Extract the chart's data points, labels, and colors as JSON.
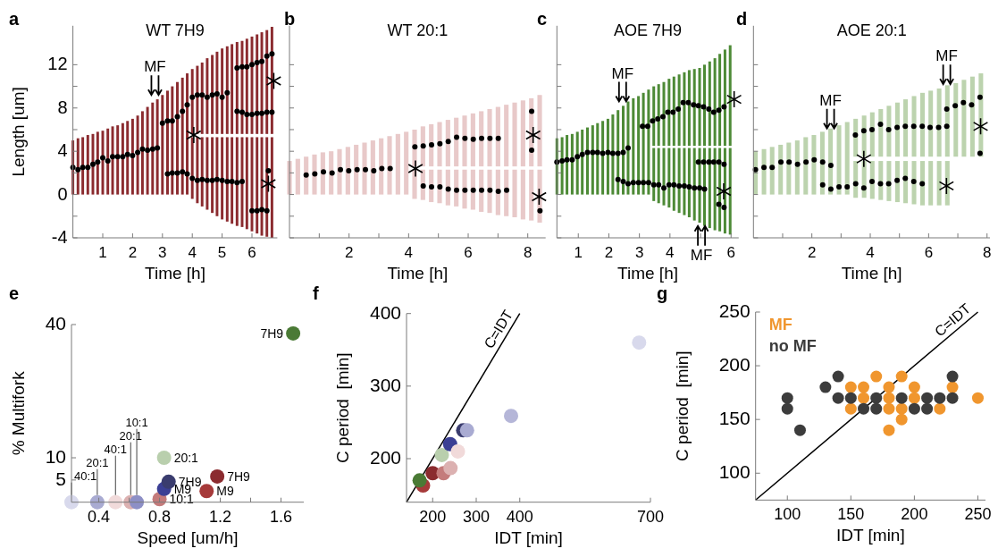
{
  "chart_data": [
    {
      "type": "bar",
      "title": "WT 7H9",
      "xlabel": "Time [h]",
      "ylabel": "Length [um]",
      "xlim": [
        0,
        6.85
      ],
      "ylim": [
        -4,
        15.6
      ],
      "xticks": [
        1,
        2,
        3,
        4,
        5,
        6
      ],
      "yticks": [
        -4,
        {
          "value": -2,
          "label": null
        },
        0,
        {
          "value": 2,
          "label": null
        },
        4,
        {
          "value": 6,
          "label": null
        },
        8,
        {
          "value": 10,
          "label": null
        },
        12
      ],
      "marker": "circle",
      "annotations": [
        "a",
        {
          "text": "MF",
          "x": 2.75,
          "y": 9.2
        }
      ],
      "series": [
        {
          "color": "#8b2b2f",
          "x": [
            0,
            0.17,
            0.33,
            0.5,
            0.67,
            0.83,
            1,
            1.17,
            1.33,
            1.5,
            1.67,
            1.83,
            2,
            2.17,
            2.33,
            2.5,
            2.67,
            2.83,
            3,
            3.17,
            3.33,
            3.5,
            3.67,
            3.83,
            4,
            4.17,
            4.33,
            4.5,
            4.67,
            4.83,
            5,
            5.17,
            5.33,
            5.5,
            5.67,
            5.83,
            6,
            6.17,
            6.33,
            6.5,
            6.67
          ],
          "base": [
            0,
            0,
            0,
            0,
            0,
            0,
            0,
            0,
            0,
            0,
            0,
            0,
            0,
            0,
            0,
            0,
            0,
            0,
            0,
            0,
            0,
            0,
            0,
            0,
            -0.4,
            -0.8,
            -1.1,
            -1.4,
            -1.7,
            -2,
            -2.3,
            -2.5,
            -2.7,
            -2.9,
            -3,
            -3.2,
            -3.4,
            -3.6,
            -3.8,
            -3.9,
            -4
          ],
          "values": [
            5,
            5.2,
            5.3,
            5.5,
            5.6,
            5.8,
            5.9,
            6.1,
            6.3,
            6.4,
            6.6,
            6.8,
            7,
            7.3,
            7.7,
            8.1,
            8.5,
            8.8,
            9.2,
            9.6,
            10,
            10.4,
            10.8,
            11.2,
            5.7,
            6.1,
            6.4,
            6.7,
            7,
            7.3,
            7.6,
            7.8,
            8,
            8.2,
            8.3,
            8.5,
            8.7,
            8.9,
            9.1,
            9.2,
            9.3
          ]
        },
        {
          "color": "#8b2b2f",
          "x": [
            4,
            4.17,
            4.33,
            4.5,
            4.67,
            4.83,
            5,
            5.17,
            5.33,
            5.5,
            5.67,
            5.83,
            6,
            6.17,
            6.33,
            6.5,
            6.67
          ],
          "base": [
            5.6,
            5.6,
            5.6,
            5.6,
            5.6,
            5.6,
            5.6,
            5.6,
            5.6,
            5.6,
            5.6,
            5.6,
            5.6,
            5.6,
            5.6,
            5.6,
            5.6
          ],
          "values": [
            6,
            6.3,
            6.6,
            7,
            7.3,
            7.6,
            7.9,
            8.1,
            8.3,
            8.5,
            8.6,
            8.8,
            9,
            9.2,
            9.4,
            9.6,
            9.9
          ]
        },
        {
          "type": "scatter",
          "color": "#000000",
          "x": [
            0,
            0.17,
            0.33,
            0.5,
            0.67,
            0.83,
            1,
            1.17,
            1.33,
            1.5,
            1.67,
            1.83,
            2,
            2.17,
            2.33,
            2.5,
            2.67,
            2.83,
            3,
            3.17,
            3.33,
            3.5,
            3.67,
            3.83,
            4,
            4.17,
            4.33,
            4.5,
            4.67,
            4.83,
            5,
            5.17,
            3.17,
            3.33,
            3.5,
            3.67,
            3.83,
            4,
            4.17,
            4.33,
            4.5,
            4.67,
            4.83,
            5,
            5.17,
            5.33,
            5.5,
            5.67,
            5.5,
            5.67,
            5.83,
            6,
            6.17,
            6.33,
            6.5,
            6.67,
            5.5,
            5.67,
            5.83,
            6,
            6.17,
            6.33,
            6.5,
            6.67,
            6,
            6.17,
            6.33,
            6.5,
            6.55
          ],
          "values": [
            2.5,
            2.3,
            2.5,
            2.5,
            2.8,
            3,
            3.4,
            3.1,
            3.5,
            3.5,
            3.5,
            3.7,
            3.6,
            3.9,
            4.2,
            4.1,
            4.2,
            4.3,
            6.6,
            6.8,
            6.8,
            7.2,
            7.7,
            8.3,
            9,
            9.2,
            9.2,
            9,
            9.2,
            9.3,
            9,
            9.4,
            1.9,
            2,
            2,
            2.1,
            1.9,
            1.5,
            1.3,
            1.4,
            1.3,
            1.3,
            1.4,
            1.3,
            1.2,
            1.2,
            1.1,
            1.2,
            11.7,
            11.8,
            11.8,
            12,
            12.2,
            12.3,
            12.8,
            13,
            7.7,
            7.6,
            7.4,
            7.4,
            7.5,
            7.5,
            7.6,
            7.6,
            -1.5,
            -1.5,
            -1.4,
            -1.5,
            2.2
          ]
        },
        {
          "type": "scatter",
          "marker": "cross",
          "color": "#000000",
          "x": [
            4.05,
            6.73,
            6.55
          ],
          "values": [
            5.5,
            10.5,
            1
          ]
        }
      ]
    },
    {
      "type": "bar",
      "title": "WT 20:1",
      "xlabel": "Time [h]",
      "xlim": [
        0,
        8.6
      ],
      "ylim": [
        -4,
        15.6
      ],
      "tick_labels": "x",
      "xticks": [
        {
          "value": 1,
          "label": null
        },
        2,
        {
          "value": 3,
          "label": null
        },
        4,
        {
          "value": 5,
          "label": null
        },
        6,
        {
          "value": 7,
          "label": null
        },
        8
      ],
      "yticks": [
        {
          "value": -4,
          "label": null
        },
        {
          "value": -2,
          "label": null
        },
        {
          "value": 0,
          "label": null
        },
        {
          "value": 2,
          "label": null
        },
        {
          "value": 4,
          "label": null
        },
        {
          "value": 6,
          "label": null
        },
        {
          "value": 8,
          "label": null
        },
        {
          "value": 10,
          "label": null
        },
        {
          "value": 12,
          "label": null
        }
      ],
      "marker": "circle",
      "annotations": [
        "b"
      ],
      "series": [
        {
          "color": "#e8c9c9",
          "x": [
            0,
            0.28,
            0.56,
            0.84,
            1.12,
            1.4,
            1.68,
            1.96,
            2.24,
            2.52,
            2.8,
            3.08,
            3.36,
            3.64,
            3.92,
            4.2,
            4.48,
            4.76,
            5.04,
            5.32,
            5.6,
            5.88,
            6.16,
            6.44,
            6.72,
            7,
            7.28,
            7.56,
            7.84,
            8.12,
            8.4
          ],
          "base": [
            0,
            0,
            0,
            0,
            0,
            0,
            0,
            0,
            0,
            0,
            0,
            0,
            0,
            0,
            0,
            -0.4,
            -0.5,
            -0.7,
            -0.8,
            -1,
            -1.1,
            -1.3,
            -1.4,
            -1.6,
            -1.7,
            -1.9,
            -2,
            -2.1,
            -2.3,
            -2.4,
            -2.6
          ],
          "values": [
            3.1,
            3.3,
            3.5,
            3.7,
            3.9,
            4,
            4.2,
            4.4,
            4.6,
            4.8,
            5,
            5.2,
            5.4,
            5.6,
            5.8,
            2.7,
            2.8,
            3,
            3.1,
            3.3,
            3.4,
            3.6,
            3.7,
            3.9,
            4,
            4.2,
            4.3,
            4.4,
            4.6,
            4.7,
            4.9
          ]
        },
        {
          "color": "#e8c9c9",
          "x": [
            4.2,
            4.48,
            4.76,
            5.04,
            5.32,
            5.6,
            5.88,
            6.16,
            6.44,
            6.72,
            7,
            7.28,
            7.56,
            7.84,
            8.12,
            8.4
          ],
          "base": [
            2.6,
            2.6,
            2.6,
            2.6,
            2.6,
            2.6,
            2.6,
            2.6,
            2.6,
            2.6,
            2.6,
            2.6,
            2.6,
            2.6,
            2.6,
            2.6
          ],
          "values": [
            3.4,
            3.7,
            3.9,
            4.1,
            4.3,
            4.5,
            4.7,
            4.9,
            5.1,
            5.3,
            5.5,
            5.7,
            5.9,
            6.1,
            6.3,
            6.6
          ]
        },
        {
          "type": "scatter",
          "color": "#000000",
          "x": [
            0.56,
            0.85,
            1.14,
            1.43,
            1.71,
            1.99,
            2.27,
            2.55,
            2.83,
            3.1,
            3.38,
            4.21,
            4.49,
            4.77,
            5.05,
            5.33,
            5.61,
            5.89,
            6.17,
            6.45,
            6.73,
            7.01,
            4.49,
            4.77,
            5.05,
            5.33,
            5.61,
            5.89,
            6.17,
            6.45,
            6.73,
            7.01,
            7.29,
            8.13,
            8.13,
            8.41
          ],
          "values": [
            1.8,
            1.9,
            2.1,
            2,
            2.3,
            2.2,
            2.3,
            2.3,
            2.2,
            2.4,
            2.4,
            4.4,
            4.5,
            4.6,
            4.7,
            4.9,
            5.3,
            5.2,
            5.1,
            5.2,
            5.2,
            5.2,
            0.8,
            0.7,
            0.7,
            0.5,
            0.4,
            0.4,
            0.4,
            0.4,
            0.4,
            0.3,
            0.4,
            7.7,
            4.1,
            -1.5
          ]
        },
        {
          "type": "scatter",
          "marker": "cross",
          "color": "#000000",
          "x": [
            4.23,
            8.18,
            8.38
          ],
          "values": [
            2.4,
            5.5,
            -0.2
          ]
        }
      ]
    },
    {
      "type": "bar",
      "title": "AOE 7H9",
      "xlabel": "Time [h]",
      "xlim": [
        0.3,
        6.25
      ],
      "ylim": [
        -4,
        15.6
      ],
      "tick_labels": "x",
      "xticks": [
        1,
        2,
        3,
        4,
        {
          "value": 5,
          "label": null
        },
        6
      ],
      "yticks": [
        {
          "value": -4,
          "label": null
        },
        {
          "value": -2,
          "label": null
        },
        {
          "value": 0,
          "label": null
        },
        {
          "value": 2,
          "label": null
        },
        {
          "value": 4,
          "label": null
        },
        {
          "value": 6,
          "label": null
        },
        {
          "value": 8,
          "label": null
        },
        {
          "value": 10,
          "label": null
        },
        {
          "value": 12,
          "label": null
        }
      ],
      "marker": "circle",
      "annotations": [
        "c",
        {
          "text": "MF",
          "x": 2.45,
          "y": 8.6
        },
        {
          "text": "MF",
          "x": 5.03,
          "y": -2.9
        }
      ],
      "series": [
        {
          "color": "#4d8a36",
          "x": [
            0.3,
            0.47,
            0.63,
            0.8,
            0.97,
            1.13,
            1.3,
            1.47,
            1.63,
            1.8,
            1.97,
            2.13,
            2.3,
            2.47,
            2.63,
            2.8,
            2.97,
            3.13,
            3.3,
            3.47,
            3.63,
            3.8,
            3.97,
            4.13,
            4.3,
            4.47,
            4.63,
            4.8,
            4.97,
            5.13,
            5.3,
            5.47,
            5.63,
            5.8,
            5.97
          ],
          "base": [
            0,
            0,
            0,
            0,
            0,
            0,
            0,
            0,
            0,
            0,
            0,
            0,
            0,
            0,
            0,
            0,
            0,
            0,
            0,
            -0.6,
            -0.8,
            -1,
            -1.2,
            -1.5,
            -1.7,
            -1.9,
            -2.1,
            -2.4,
            -2.6,
            -2.9,
            -3.1,
            -3.3,
            -3.4,
            -3.6,
            -3.7
          ],
          "values": [
            5.2,
            5.3,
            5.5,
            5.6,
            5.8,
            6,
            6.2,
            6.4,
            6.6,
            6.8,
            7,
            7.4,
            7.8,
            8.2,
            8.6,
            8.9,
            9.1,
            9.4,
            9.7,
            4.9,
            5.1,
            5.3,
            5.5,
            5.8,
            6,
            6.2,
            6.4,
            6.7,
            6.9,
            7.2,
            7.4,
            7.6,
            7.7,
            7.9,
            8
          ]
        },
        {
          "color": "#4d8a36",
          "x": [
            3.47,
            3.63,
            3.8,
            3.97,
            4.13,
            4.3,
            4.47,
            4.63,
            4.8,
            4.97,
            5.13,
            5.3,
            5.47,
            5.63,
            5.8,
            5.97
          ],
          "base": [
            4.5,
            4.5,
            4.5,
            4.5,
            4.5,
            4.5,
            4.5,
            4.5,
            4.5,
            4.5,
            4.5,
            4.5,
            4.5,
            4.5,
            4.5,
            4.5
          ],
          "values": [
            5.5,
            5.7,
            5.9,
            6.2,
            6.4,
            6.6,
            6.8,
            7,
            7.1,
            7.2,
            7.5,
            7.8,
            8.1,
            8.5,
            8.9,
            9.3
          ]
        },
        {
          "type": "scatter",
          "color": "#000000",
          "x": [
            0.3,
            0.47,
            0.63,
            0.8,
            0.97,
            1.13,
            1.3,
            1.47,
            1.63,
            1.8,
            1.97,
            2.13,
            2.3,
            2.47,
            2.63,
            3.1,
            3.27,
            3.43,
            3.6,
            3.77,
            3.93,
            4.1,
            4.27,
            4.43,
            4.6,
            4.77,
            4.93,
            5.1,
            5.27,
            5.43,
            5.6,
            5.77,
            2.3,
            2.47,
            2.63,
            2.8,
            2.97,
            3.13,
            3.3,
            3.47,
            3.63,
            3.8,
            3.97,
            4.13,
            4.3,
            4.47,
            4.63,
            4.8,
            4.97,
            5.13,
            4.93,
            5.1,
            5.27,
            5.43,
            5.6,
            5.77,
            5.6,
            5.77
          ],
          "values": [
            3,
            3.1,
            3.2,
            3.2,
            3.5,
            3.7,
            3.9,
            3.9,
            3.9,
            3.8,
            3.9,
            3.8,
            3.8,
            3.9,
            4.3,
            6.3,
            6.3,
            6.8,
            7,
            7.2,
            7.6,
            7.6,
            7.9,
            8.5,
            8.5,
            8.3,
            8.2,
            8.1,
            7.9,
            7.6,
            7.8,
            8.1,
            1.4,
            1.2,
            1,
            1.1,
            1.1,
            1.1,
            1.1,
            0.9,
            0.9,
            0.6,
            0.9,
            0.9,
            0.8,
            0.8,
            0.7,
            0.6,
            0.6,
            0.5,
            3,
            3,
            3,
            3,
            3,
            2.8,
            -0.9,
            -1.2
          ]
        },
        {
          "type": "scatter",
          "marker": "cross",
          "color": "#000000",
          "x": [
            6.1,
            5.76
          ],
          "values": [
            8.8,
            0.3
          ]
        }
      ]
    },
    {
      "type": "bar",
      "title": "AOE 20:1",
      "xlabel": "Time [h]",
      "xlim": [
        0,
        8.1
      ],
      "ylim": [
        -4,
        15.6
      ],
      "tick_labels": "x",
      "xticks": [
        {
          "value": 1,
          "label": null
        },
        2,
        {
          "value": 3,
          "label": null
        },
        4,
        {
          "value": 5,
          "label": null
        },
        6,
        {
          "value": 7,
          "label": null
        },
        8
      ],
      "yticks": [
        {
          "value": -4,
          "label": null
        },
        {
          "value": -2,
          "label": null
        },
        {
          "value": 0,
          "label": null
        },
        {
          "value": 2,
          "label": null
        },
        {
          "value": 4,
          "label": null
        },
        {
          "value": 6,
          "label": null
        },
        {
          "value": 8,
          "label": null
        },
        {
          "value": 10,
          "label": null
        },
        {
          "value": 12,
          "label": null
        }
      ],
      "marker": "circle",
      "annotations": [
        "d",
        {
          "text": "MF",
          "x": 2.64,
          "y": 6.1
        },
        {
          "text": "MF",
          "x": 6.62,
          "y": 10.2
        }
      ],
      "series": [
        {
          "color": "#bcd3ae",
          "x": [
            0.07,
            0.36,
            0.64,
            0.93,
            1.21,
            1.5,
            1.79,
            2.07,
            2.36,
            2.64,
            2.93,
            3.21,
            3.5,
            3.79,
            4.07,
            4.36,
            4.64,
            4.93,
            5.21,
            5.5,
            5.79,
            6.07,
            6.36,
            6.64
          ],
          "base": [
            0,
            0,
            0,
            0,
            0,
            0,
            0,
            0,
            0,
            0,
            0,
            0,
            -0.3,
            -0.3,
            -0.4,
            -0.5,
            -0.6,
            -0.7,
            -0.8,
            -0.9,
            -1,
            -1,
            -1,
            -1
          ],
          "values": [
            4,
            4.2,
            4.4,
            4.6,
            4.8,
            5,
            5.3,
            5.5,
            5.8,
            6.1,
            6.4,
            6.7,
            3.4,
            3.4,
            3.5,
            3.6,
            3.7,
            3.8,
            3.9,
            4,
            4.1,
            4.1,
            4.1,
            4.1
          ]
        },
        {
          "color": "#bcd3ae",
          "x": [
            3.5,
            3.79,
            4.07,
            4.36,
            4.64,
            4.93,
            5.21,
            5.5,
            5.79,
            6.07,
            6.36,
            6.64,
            6.93,
            7.21,
            7.5,
            7.79
          ],
          "base": [
            3.5,
            3.5,
            3.5,
            3.5,
            3.5,
            3.5,
            3.5,
            3.5,
            3.5,
            3.5,
            3.5,
            3.5,
            3.5,
            3.5,
            3.5,
            3.5
          ],
          "values": [
            3.5,
            3.8,
            4.1,
            4.4,
            4.7,
            5,
            5.3,
            5.6,
            5.9,
            6.1,
            6.3,
            6.6,
            6.8,
            7.1,
            7.4,
            7.7
          ]
        },
        {
          "type": "scatter",
          "color": "#000000",
          "x": [
            0.07,
            0.36,
            0.64,
            0.94,
            1.22,
            1.51,
            1.8,
            2.08,
            2.37,
            2.65,
            3.49,
            3.78,
            4.06,
            4.35,
            4.63,
            4.92,
            5.2,
            5.49,
            5.78,
            6.05,
            6.34,
            6.62,
            6.62,
            6.91,
            7.19,
            7.47,
            7.76,
            7.76,
            2.37,
            2.65,
            2.93,
            3.21,
            3.5,
            3.78,
            4.06,
            4.35,
            4.63,
            4.92,
            5.2,
            5.49,
            5.78
          ],
          "values": [
            2.3,
            2.5,
            2.5,
            3,
            3,
            2.8,
            3,
            3.2,
            3,
            2.7,
            5.5,
            5.9,
            6,
            6.5,
            6,
            6.2,
            6.3,
            6.3,
            6.3,
            6.2,
            6.2,
            6.3,
            7.9,
            8.2,
            8.5,
            8.3,
            9,
            3.8,
            0.9,
            0.5,
            0.7,
            0.7,
            1,
            0.6,
            1.2,
            1,
            1,
            1.3,
            1.5,
            1.2,
            1
          ]
        },
        {
          "type": "scatter",
          "marker": "cross",
          "color": "#000000",
          "x": [
            3.78,
            6.61,
            7.78
          ],
          "values": [
            3.3,
            0.8,
            6.3
          ]
        }
      ]
    },
    {
      "type": "scatter",
      "xlabel": "Speed [um/h]",
      "ylabel": "% Multifork",
      "xlim": [
        0.22,
        1.75
      ],
      "ylim": [
        0,
        40
      ],
      "xticks": [
        0.4,
        {
          "value": 0.6,
          "label": null
        },
        0.8,
        {
          "value": 1,
          "label": null
        },
        1.2,
        {
          "value": 1.4,
          "label": null
        },
        1.6
      ],
      "yticks": [
        5,
        10,
        40
      ],
      "marker": "circle",
      "annotations": [
        "e"
      ],
      "series": [
        {
          "name": "40:1",
          "color": "#d8d9ec",
          "x": [
            0.22
          ],
          "values": [
            0
          ]
        },
        {
          "name": "20:1",
          "color": "#a9abd2",
          "x": [
            0.39
          ],
          "values": [
            0
          ]
        },
        {
          "name": "40:1",
          "color": "#f1dada",
          "x": [
            0.51
          ],
          "values": [
            0
          ]
        },
        {
          "name": "20:1",
          "color": "#dcb1b1",
          "x": [
            0.61
          ],
          "values": [
            0
          ]
        },
        {
          "name": "10:1",
          "color": "#8d8fc6",
          "x": [
            0.65
          ],
          "values": [
            0
          ]
        },
        {
          "name": "10:1",
          "color": "#c47b7b",
          "x": [
            0.8
          ],
          "values": [
            0.7
          ]
        },
        {
          "name": "M9",
          "color": "#3b3f94",
          "x": [
            0.83
          ],
          "values": [
            3
          ]
        },
        {
          "name": "7H9",
          "color": "#3a3c6e",
          "x": [
            0.86
          ],
          "values": [
            4.6
          ]
        },
        {
          "name": "M9",
          "color": "#a63a3a",
          "x": [
            1.11
          ],
          "values": [
            2.5
          ]
        },
        {
          "name": "7H9",
          "color": "#8b2b2f",
          "x": [
            1.18
          ],
          "values": [
            5.8
          ]
        },
        {
          "name": "20:1",
          "color": "#b9cfad",
          "x": [
            0.83
          ],
          "values": [
            10
          ]
        },
        {
          "name": "7H9",
          "color": "#4a7a35",
          "x": [
            1.68
          ],
          "values": [
            38
          ]
        }
      ]
    },
    {
      "type": "scatter",
      "xlabel": "IDT [min]",
      "ylabel": "C period  [min]",
      "xlim": [
        140,
        700
      ],
      "ylim": [
        140,
        400
      ],
      "xticks": [
        200,
        300,
        400,
        700
      ],
      "yticks": [
        200,
        300,
        400
      ],
      "marker": "circle",
      "annotations": [
        "f"
      ],
      "series": [
        {
          "type": "line",
          "name": "C=IDT",
          "color": "#000000",
          "marker": "none",
          "x": [
            140,
            400
          ],
          "values": [
            140,
            400
          ]
        },
        {
          "colors": [
            "#a63a3a",
            "#4a7a35",
            "#8b2b2f",
            "#c47b7b",
            "#dcb1b1",
            "#b9cfad",
            "#3b3f94",
            "#f1dada",
            "#3a3c6e",
            "#a9abd2",
            "#b5b6d8",
            "#d8d9ec"
          ],
          "x": [
            178,
            170,
            200,
            225,
            241,
            221,
            240,
            258,
            270,
            279,
            380,
            674
          ],
          "values": [
            163,
            170,
            180,
            180,
            187,
            205,
            220,
            210,
            239,
            239,
            259,
            360
          ]
        }
      ]
    },
    {
      "type": "scatter",
      "xlabel": "IDT [min]",
      "ylabel": "C period  [min]",
      "xlim": [
        75,
        256
      ],
      "ylim": [
        75,
        250
      ],
      "xticks": [
        100,
        150,
        200,
        250
      ],
      "yticks": [
        100,
        150,
        200,
        250
      ],
      "marker": "circle",
      "legend": "top left",
      "annotations": [
        "g"
      ],
      "series": [
        {
          "type": "line",
          "name": "C=IDT",
          "color": "#000000",
          "marker": "none",
          "x": [
            75,
            250
          ],
          "values": [
            75,
            250
          ]
        },
        {
          "name": "MF",
          "color": "#f0962e",
          "x": [
            150,
            150,
            160,
            160,
            170,
            180,
            180,
            180,
            180,
            190,
            190,
            190,
            200,
            200,
            220,
            230,
            250
          ],
          "values": [
            180,
            160,
            180,
            170,
            190,
            180,
            170,
            160,
            140,
            190,
            160,
            150,
            180,
            170,
            160,
            180,
            170
          ]
        },
        {
          "name": "no MF",
          "color": "#3c3c3c",
          "x": [
            100,
            100,
            110,
            130,
            140,
            140,
            150,
            160,
            170,
            170,
            190,
            200,
            210,
            210,
            220,
            230,
            230
          ],
          "values": [
            170,
            160,
            140,
            180,
            190,
            170,
            170,
            160,
            170,
            160,
            170,
            160,
            170,
            160,
            170,
            190,
            170
          ]
        }
      ]
    }
  ]
}
